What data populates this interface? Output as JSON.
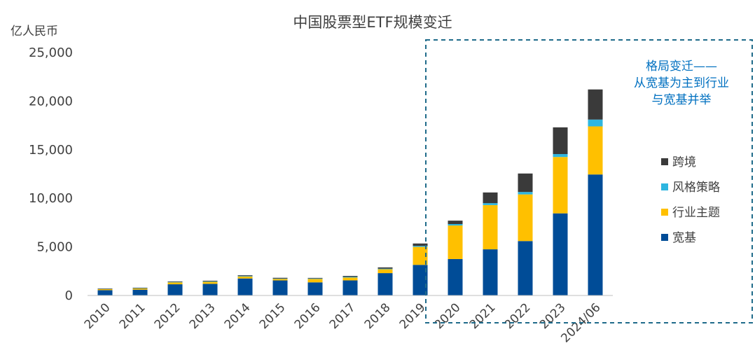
{
  "chart_data": {
    "type": "bar",
    "stacked": true,
    "title": "中国股票型ETF规模变迁",
    "ylabel": "亿人民币",
    "xlabel": "",
    "ylim": [
      0,
      25000
    ],
    "yticks": [
      "0",
      "5,000",
      "10,000",
      "15,000",
      "20,000",
      "25,000"
    ],
    "grid": false,
    "legend_position": "right",
    "categories": [
      "2010",
      "2011",
      "2012",
      "2013",
      "2014",
      "2015",
      "2016",
      "2017",
      "2018",
      "2019",
      "2020",
      "2021",
      "2022",
      "2023",
      "2024/06"
    ],
    "series": [
      {
        "name": "宽基",
        "color": "#004c97",
        "values": [
          550,
          600,
          1150,
          1200,
          1750,
          1550,
          1350,
          1550,
          2300,
          3150,
          3750,
          4750,
          5600,
          8450,
          12450
        ]
      },
      {
        "name": "行业主题",
        "color": "#ffc000",
        "values": [
          100,
          120,
          200,
          200,
          200,
          150,
          350,
          300,
          400,
          1850,
          3450,
          4550,
          4800,
          5800,
          4950
        ]
      },
      {
        "name": "风格策略",
        "color": "#2eb6e0",
        "values": [
          20,
          30,
          40,
          50,
          50,
          40,
          50,
          60,
          60,
          100,
          150,
          200,
          250,
          300,
          700
        ]
      },
      {
        "name": "跨境",
        "color": "#3a3a3a",
        "values": [
          50,
          50,
          60,
          70,
          80,
          80,
          60,
          100,
          130,
          250,
          350,
          1100,
          1900,
          2750,
          3100
        ]
      }
    ],
    "annotation": {
      "lines": [
        "格局变迁——",
        "从宽基为主到行业",
        "与宽基并举"
      ],
      "color": "#0070c0",
      "box_color": "#1f6b8a",
      "box_categories": [
        "2020",
        "2024/06"
      ]
    }
  }
}
